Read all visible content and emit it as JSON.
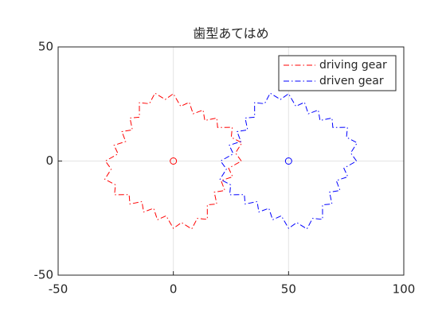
{
  "chart_data": {
    "type": "line",
    "title": "歯型あてはめ",
    "xlim": [
      -50,
      100
    ],
    "ylim": [
      -50,
      50
    ],
    "xticks": [
      -50,
      0,
      50,
      100
    ],
    "yticks": [
      -50,
      0,
      50
    ],
    "grid": true,
    "legend": "northeast",
    "linestyle": "dashdot",
    "series": [
      {
        "name": "driving gear",
        "color": "#ff0000",
        "center": [
          0,
          0
        ],
        "x": [
          29.5,
          26.97,
          29.75,
          25.13,
          25.55,
          19.2,
          18.84,
          13.64,
          12.9,
          8.57,
          6.9,
          3.16,
          0,
          -3.55,
          -7.97,
          -10.41,
          -14.75,
          -14.73,
          -18.84,
          -17.77,
          -22.34,
          -20.7,
          -25.74,
          -23.99,
          -29.5,
          -26.97,
          -29.75,
          -25.13,
          -25.55,
          -19.2,
          -18.84,
          -13.64,
          -12.9,
          -8.57,
          -6.9,
          -3.16,
          0,
          3.55,
          7.97,
          10.41,
          14.75,
          14.73,
          18.84,
          17.77,
          22.34,
          20.7,
          25.74,
          23.99,
          29.5
        ],
        "y": [
          0,
          3.55,
          7.97,
          10.41,
          14.75,
          14.73,
          18.84,
          17.77,
          22.34,
          20.7,
          25.74,
          23.99,
          29.5,
          26.97,
          29.75,
          25.13,
          25.55,
          19.2,
          18.84,
          13.64,
          12.9,
          8.57,
          6.9,
          3.16,
          0,
          -3.55,
          -7.97,
          -10.41,
          -14.75,
          -14.73,
          -18.84,
          -17.77,
          -22.34,
          -20.7,
          -25.74,
          -23.99,
          -29.5,
          -26.97,
          -29.75,
          -25.13,
          -25.55,
          -19.2,
          -18.84,
          -13.64,
          -12.9,
          -8.57,
          -6.9,
          -3.16,
          0
        ]
      },
      {
        "name": "driven gear",
        "color": "#0000ff",
        "center": [
          50,
          0
        ],
        "x": [
          79.5,
          76.97,
          79.75,
          75.13,
          75.55,
          69.2,
          68.84,
          63.64,
          62.9,
          58.57,
          56.9,
          53.16,
          50,
          46.45,
          42.03,
          39.59,
          35.25,
          35.27,
          31.16,
          32.23,
          27.66,
          29.3,
          24.26,
          26.01,
          20.5,
          23.03,
          20.25,
          24.87,
          24.45,
          30.8,
          31.16,
          36.36,
          37.1,
          41.43,
          43.1,
          46.84,
          50,
          53.55,
          57.97,
          60.41,
          64.75,
          64.73,
          68.84,
          67.77,
          72.34,
          70.7,
          75.74,
          73.99,
          79.5
        ],
        "y": [
          0,
          3.55,
          7.97,
          10.41,
          14.75,
          14.73,
          18.84,
          17.77,
          22.34,
          20.7,
          25.74,
          23.99,
          29.5,
          26.97,
          29.75,
          25.13,
          25.55,
          19.2,
          18.84,
          13.64,
          12.9,
          8.57,
          6.9,
          3.16,
          0,
          -3.55,
          -7.97,
          -10.41,
          -14.75,
          -14.73,
          -18.84,
          -17.77,
          -22.34,
          -20.7,
          -25.74,
          -23.99,
          -29.5,
          -26.97,
          -29.75,
          -25.13,
          -25.55,
          -19.2,
          -18.84,
          -13.64,
          -12.9,
          -8.57,
          -6.9,
          -3.16,
          0
        ]
      }
    ]
  }
}
